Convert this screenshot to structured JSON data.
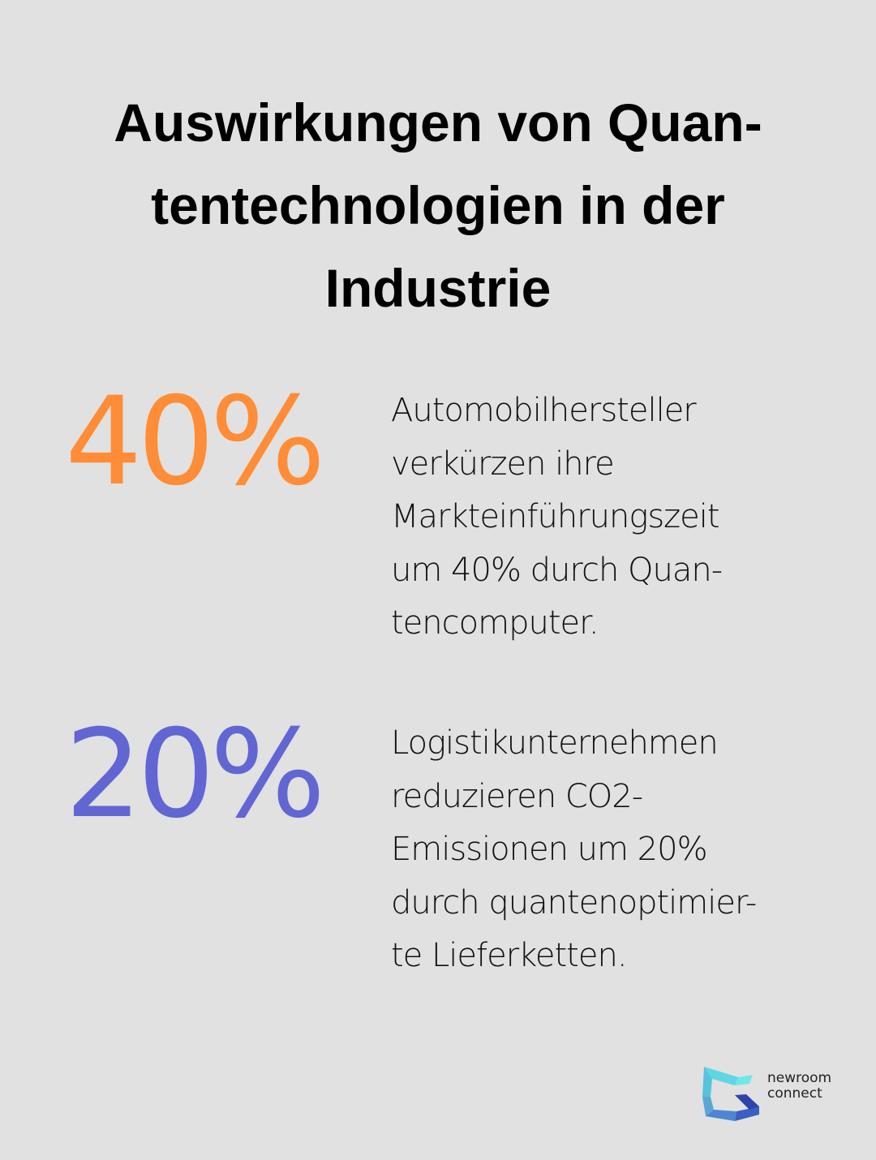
{
  "title": {
    "lines": [
      "Auswirkungen von Quan-",
      "tentechnologien in der",
      "Industrie"
    ]
  },
  "stats": [
    {
      "value": "40%",
      "color": "#ff8c36",
      "lines": [
        "Automobilhersteller",
        "verkürzen ihre",
        "Markteinführungszeit",
        "um 40% durch Quan-",
        "tencomputer."
      ]
    },
    {
      "value": "20%",
      "color": "#6166d2",
      "lines": [
        "Logistikunternehmen",
        "reduzieren CO2-",
        "Emissionen um 20%",
        "durch quantenoptimier-",
        "te Lieferketten."
      ]
    }
  ],
  "logo": {
    "line1": "newroom",
    "line2": "connect",
    "icon": "newroom-connect-logo-icon"
  }
}
